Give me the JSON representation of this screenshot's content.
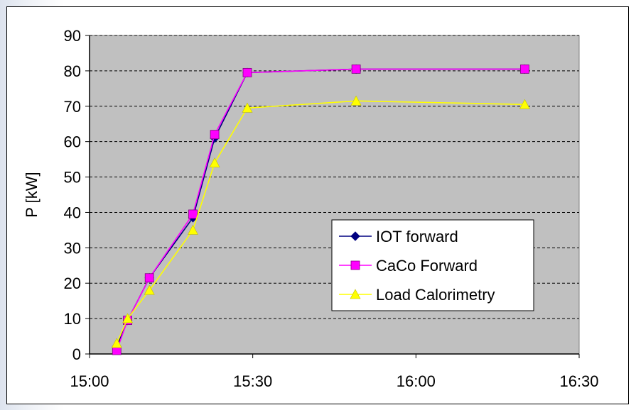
{
  "chart_data": {
    "type": "line",
    "title": "",
    "xlabel": "",
    "ylabel": "P [kW]",
    "ylim": [
      0,
      90
    ],
    "y_ticks": [
      "0",
      "10",
      "20",
      "30",
      "40",
      "50",
      "60",
      "70",
      "80",
      "90"
    ],
    "xlim": [
      "15:00",
      "16:30"
    ],
    "x_ticks": [
      "15:00",
      "15:30",
      "16:00",
      "16:30"
    ],
    "grid": "horizontal dashed",
    "plot_background": "#c0c0c0",
    "legend_placement": "right",
    "series": [
      {
        "name": "IOT forward",
        "color": "#000080",
        "marker": "diamond",
        "x": [
          "15:05",
          "15:07",
          "15:11",
          "15:19",
          "15:23",
          "15:29",
          "15:49",
          "16:20"
        ],
        "y": [
          2,
          9.5,
          21.5,
          38.5,
          61,
          79.5,
          80.5,
          80.5
        ]
      },
      {
        "name": "CaCo Forward",
        "color": "#ff00ff",
        "marker": "square",
        "x": [
          "15:05",
          "15:07",
          "15:11",
          "15:19",
          "15:23",
          "15:29",
          "15:49",
          "16:20"
        ],
        "y": [
          1,
          9.5,
          21.5,
          39.5,
          62,
          79.5,
          80.5,
          80.5
        ]
      },
      {
        "name": "Load Calorimetry",
        "color": "#ffff00",
        "marker": "triangle",
        "x": [
          "15:05",
          "15:07",
          "15:11",
          "15:19",
          "15:23",
          "15:29",
          "15:49",
          "16:20"
        ],
        "y": [
          3,
          10,
          18,
          35,
          54,
          69.5,
          71.5,
          70.5
        ]
      }
    ]
  }
}
